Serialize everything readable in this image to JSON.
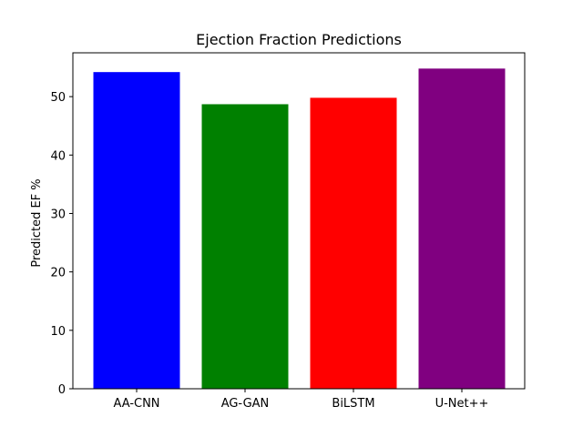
{
  "chart_data": {
    "type": "bar",
    "title": "Ejection Fraction Predictions",
    "xlabel": "",
    "ylabel": "Predicted EF %",
    "categories": [
      "AA-CNN",
      "AG-GAN",
      "BiLSTM",
      "U-Net++"
    ],
    "values": [
      54.2,
      48.7,
      49.8,
      54.8
    ],
    "colors": [
      "#0000ff",
      "#008000",
      "#ff0000",
      "#800080"
    ],
    "ylim": [
      0,
      57.5
    ],
    "yticks": [
      0,
      10,
      20,
      30,
      40,
      50
    ],
    "grid": false,
    "legend": "none"
  }
}
